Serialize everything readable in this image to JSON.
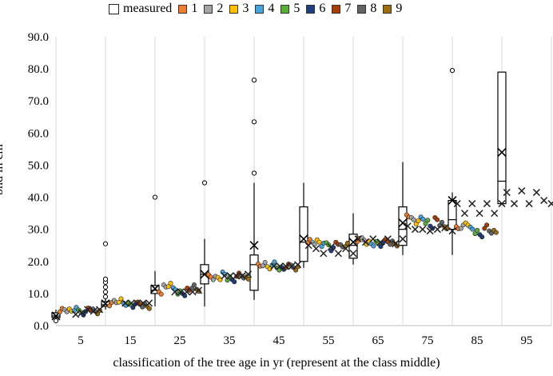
{
  "chart_data": {
    "type": "box+scatter",
    "xlabel": "classification of the tree age in yr (represent at the class middle)",
    "ylabel": "bhd in cm",
    "ylim": [
      0,
      90
    ],
    "yticks": [
      "0.0",
      "10.0",
      "20.0",
      "30.0",
      "40.0",
      "50.0",
      "60.0",
      "70.0",
      "80.0",
      "90.0"
    ],
    "xticks": [
      "5",
      "15",
      "25",
      "35",
      "45",
      "55",
      "65",
      "75",
      "85",
      "95"
    ],
    "grid": "vertical",
    "legend": {
      "position": "top",
      "entries": [
        {
          "label": "measured",
          "color": "#ffffff"
        },
        {
          "label": "1",
          "color": "#ed7d31"
        },
        {
          "label": "2",
          "color": "#a5a5a5"
        },
        {
          "label": "3",
          "color": "#ffc000"
        },
        {
          "label": "4",
          "color": "#4ba3d9"
        },
        {
          "label": "5",
          "color": "#5aad3b"
        },
        {
          "label": "6",
          "color": "#1f3d7a"
        },
        {
          "label": "7",
          "color": "#a83d0c"
        },
        {
          "label": "8",
          "color": "#636363"
        },
        {
          "label": "9",
          "color": "#9c6d12"
        }
      ]
    },
    "boxplots": [
      {
        "class": "5",
        "min": 2,
        "q1": 2.5,
        "median": 3,
        "q3": 4,
        "max": 5,
        "mean": 3,
        "outliers": [
          1.5
        ]
      },
      {
        "class": "15",
        "min": 5,
        "q1": 6,
        "median": 6.5,
        "q3": 7.5,
        "max": 8.5,
        "mean": 6.8,
        "outliers": [
          9,
          10.5,
          12,
          13.5,
          14.5,
          25.5
        ]
      },
      {
        "class": "25",
        "min": 6,
        "q1": 10,
        "median": 11,
        "q3": 12.5,
        "max": 17,
        "mean": 11.5,
        "outliers": [
          40
        ]
      },
      {
        "class": "35",
        "min": 6,
        "q1": 13,
        "median": 16,
        "q3": 19,
        "max": 27,
        "mean": 16,
        "outliers": [
          44.5
        ]
      },
      {
        "class": "45",
        "min": 8,
        "q1": 11,
        "median": 19,
        "q3": 22,
        "max": 44.5,
        "mean": 25,
        "outliers": [
          47.5,
          63.5,
          76.5
        ]
      },
      {
        "class": "55",
        "min": 18,
        "q1": 20,
        "median": 26,
        "q3": 37,
        "max": 44.5,
        "mean": 27,
        "outliers": []
      },
      {
        "class": "65",
        "min": 19,
        "q1": 21,
        "median": 25,
        "q3": 28.5,
        "max": 35,
        "mean": 26,
        "outliers": []
      },
      {
        "class": "75",
        "min": 22,
        "q1": 25,
        "median": 30,
        "q3": 37,
        "max": 51,
        "mean": 32,
        "outliers": []
      },
      {
        "class": "85",
        "min": 22,
        "q1": 30,
        "median": 33,
        "q3": 39,
        "max": 41.5,
        "mean": 39,
        "outliers": [
          79.5
        ]
      },
      {
        "class": "95",
        "min": 38,
        "q1": 38,
        "median": 45,
        "q3": 79,
        "max": 79,
        "mean": 54,
        "outliers": []
      }
    ],
    "simulated_series": [
      {
        "name": "1",
        "values": [
          5,
          6.5,
          10.5,
          15.5,
          18.5,
          26.5,
          26.5,
          34.5,
          30.5
        ]
      },
      {
        "name": "2",
        "values": [
          5,
          7.5,
          12,
          15,
          19,
          26,
          27,
          33,
          31
        ]
      },
      {
        "name": "3",
        "values": [
          4.5,
          8,
          12.5,
          15,
          18,
          26,
          26,
          32,
          32
        ]
      },
      {
        "name": "4",
        "values": [
          5,
          7,
          11.5,
          16,
          19.5,
          25,
          25.5,
          33.5,
          30
        ]
      },
      {
        "name": "5",
        "values": [
          4.5,
          6.5,
          10.5,
          14.5,
          18,
          25.5,
          25.5,
          32.5,
          29
        ]
      },
      {
        "name": "6",
        "values": [
          4,
          6,
          10,
          14,
          17.5,
          24,
          25,
          31,
          28
        ]
      },
      {
        "name": "7",
        "values": [
          5.5,
          7,
          11,
          16,
          18.5,
          26,
          26.5,
          33,
          31
        ]
      },
      {
        "name": "8",
        "values": [
          4.5,
          6.5,
          12,
          15.5,
          18.5,
          24.5,
          26,
          31.5,
          29.5
        ]
      },
      {
        "name": "9",
        "values": [
          4,
          6,
          11,
          14.5,
          18,
          25,
          25.5,
          30.5,
          29
        ]
      }
    ],
    "mean_markers": [
      [
        4,
        3.5
      ],
      [
        5.2,
        4
      ],
      [
        6.4,
        5
      ],
      [
        7.6,
        4.5
      ],
      [
        8.8,
        5
      ],
      [
        14,
        7
      ],
      [
        15.2,
        7
      ],
      [
        16.4,
        7
      ],
      [
        17.6,
        7
      ],
      [
        18.8,
        7
      ],
      [
        24,
        10.5
      ],
      [
        25.2,
        10.5
      ],
      [
        26.4,
        10.5
      ],
      [
        27.6,
        10.5
      ],
      [
        28.8,
        11
      ],
      [
        34,
        15.5
      ],
      [
        35.2,
        15.5
      ],
      [
        36.4,
        15.5
      ],
      [
        37.6,
        15.5
      ],
      [
        38.8,
        16
      ],
      [
        44,
        18.5
      ],
      [
        45.2,
        18.5
      ],
      [
        46.4,
        18.5
      ],
      [
        47.6,
        18.5
      ],
      [
        48.8,
        19
      ],
      [
        51,
        25
      ],
      [
        52.5,
        24
      ],
      [
        54,
        22.5
      ],
      [
        55.5,
        24.5
      ],
      [
        57,
        22.5
      ],
      [
        58.5,
        24
      ],
      [
        60,
        22.5
      ],
      [
        61,
        27
      ],
      [
        62.5,
        26
      ],
      [
        64,
        27
      ],
      [
        65.5,
        26
      ],
      [
        67,
        27
      ],
      [
        68.5,
        25.5
      ],
      [
        70,
        27
      ],
      [
        71,
        31
      ],
      [
        72.5,
        30
      ],
      [
        74,
        30
      ],
      [
        75.5,
        29.5
      ],
      [
        77,
        30
      ],
      [
        78.5,
        30.5
      ],
      [
        80,
        29.5
      ],
      [
        81,
        38
      ],
      [
        82.5,
        35
      ],
      [
        84,
        38
      ],
      [
        85.5,
        35
      ],
      [
        87,
        38
      ],
      [
        88.5,
        35
      ],
      [
        90,
        38
      ],
      [
        91,
        41.5
      ],
      [
        92.5,
        38
      ],
      [
        94,
        42
      ],
      [
        95.5,
        38
      ],
      [
        97,
        41.5
      ],
      [
        98.5,
        39
      ],
      [
        100,
        38
      ]
    ]
  }
}
